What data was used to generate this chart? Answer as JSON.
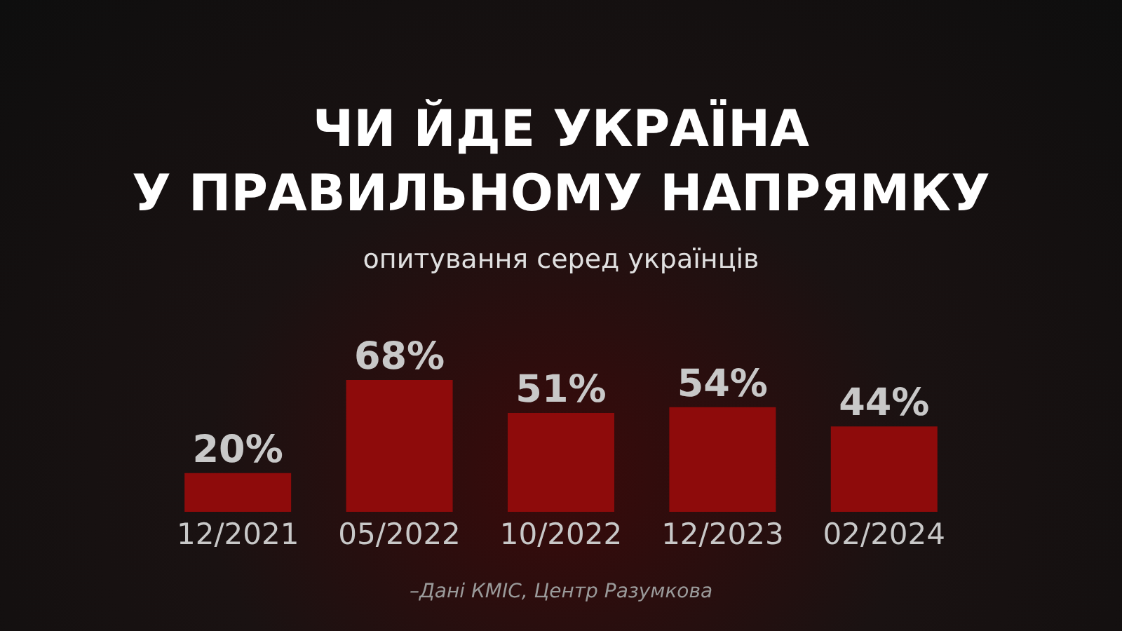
{
  "chart_data": {
    "type": "bar",
    "title": "ЧИ ЙДЕ УКРАЇНА\nУ ПРАВИЛЬНОМУ НАПРЯМКУ",
    "subtitle": "опитування серед українців",
    "categories": [
      "12/2021",
      "05/2022",
      "10/2022",
      "12/2023",
      "02/2024"
    ],
    "values": [
      20,
      68,
      51,
      54,
      44
    ],
    "value_labels": [
      "20%",
      "68%",
      "51%",
      "54%",
      "44%"
    ],
    "color": "#8e0b0b",
    "annotations": [
      "–Дані КМІС, Центр Разумкова"
    ]
  }
}
